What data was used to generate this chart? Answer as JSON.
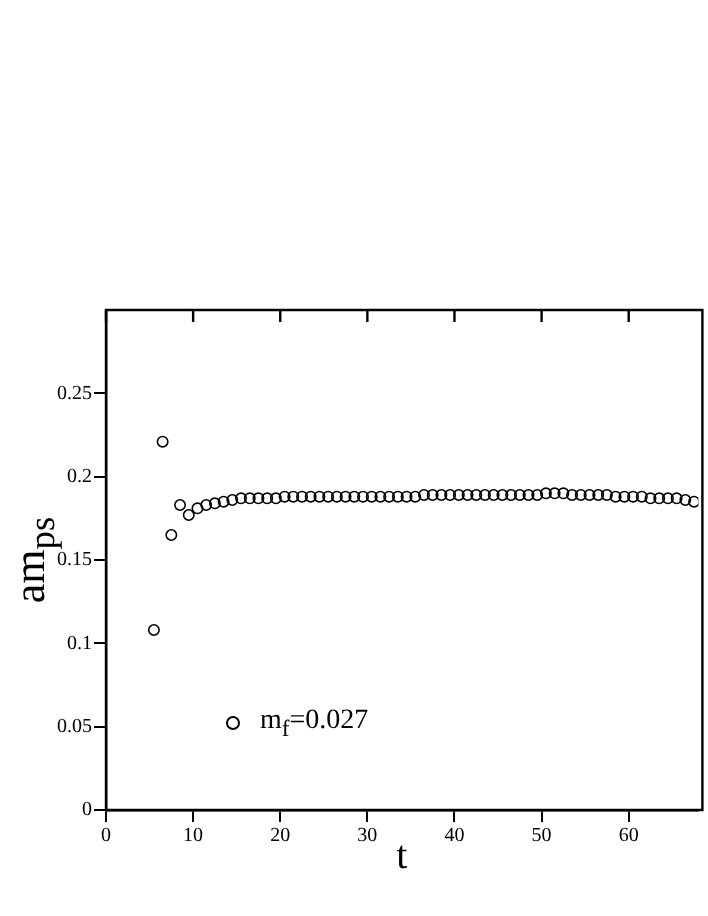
{
  "chart_data": {
    "type": "scatter",
    "xlabel": "t",
    "ylabel": "am$_{ps}$",
    "xlim": [
      0,
      68
    ],
    "ylim": [
      0,
      0.3
    ],
    "xticks": [
      0,
      10,
      20,
      30,
      40,
      50,
      60
    ],
    "yticks": [
      0,
      0.05,
      0.1,
      0.15,
      0.2,
      0.25
    ],
    "grid": false,
    "legend": "bottom left",
    "marker": "circle",
    "series": [
      {
        "name": "m$_{f}$=0.027",
        "color": "#000000",
        "x": [
          5.5,
          6.5,
          7.5,
          8.5,
          9.5,
          10.5,
          11.5,
          12.5,
          13.5,
          14.5,
          15.5,
          16.5,
          17.5,
          18.5,
          19.5,
          20.5,
          21.5,
          22.5,
          23.5,
          24.5,
          25.5,
          26.5,
          27.5,
          28.5,
          29.5,
          30.5,
          31.5,
          32.5,
          33.5,
          34.5,
          35.5,
          36.5,
          37.5,
          38.5,
          39.5,
          40.5,
          41.5,
          42.5,
          43.5,
          44.5,
          45.5,
          46.5,
          47.5,
          48.5,
          49.5,
          50.5,
          51.5,
          52.5,
          53.5,
          54.5,
          55.5,
          56.5,
          57.5,
          58.5,
          59.5,
          60.5,
          61.5,
          62.5,
          63.5,
          64.5,
          65.5,
          66.5,
          67.5
        ],
        "values": [
          0.108,
          0.221,
          0.165,
          0.183,
          0.177,
          0.181,
          0.183,
          0.184,
          0.185,
          0.186,
          0.187,
          0.187,
          0.187,
          0.187,
          0.187,
          0.188,
          0.188,
          0.188,
          0.188,
          0.188,
          0.188,
          0.188,
          0.188,
          0.188,
          0.188,
          0.188,
          0.188,
          0.188,
          0.188,
          0.188,
          0.188,
          0.189,
          0.189,
          0.189,
          0.189,
          0.189,
          0.189,
          0.189,
          0.189,
          0.189,
          0.189,
          0.189,
          0.189,
          0.189,
          0.189,
          0.19,
          0.19,
          0.19,
          0.189,
          0.189,
          0.189,
          0.189,
          0.189,
          0.188,
          0.188,
          0.188,
          0.188,
          0.187,
          0.187,
          0.187,
          0.187,
          0.186,
          0.185
        ]
      }
    ]
  }
}
